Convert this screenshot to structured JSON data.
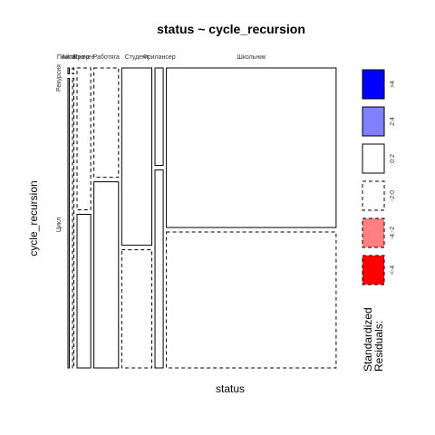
{
  "chart_data": {
    "type": "mosaic",
    "title": "status ~ cycle_recursion",
    "xlabel": "status",
    "ylabel": "cycle_recursion",
    "x_categories": [
      "Айти",
      "Пенсионер",
      "Прочее",
      "Работяга",
      "Студент",
      "Фрилансер",
      "Школьник"
    ],
    "y_categories": [
      "Рекурсия",
      "Цикл"
    ],
    "cells": [
      {
        "status": "Айти",
        "cycle_recursion": "Рекурсия",
        "proportion_x": 0.005,
        "proportion_y": 0.02,
        "residual_class": "0:2"
      },
      {
        "status": "Айти",
        "cycle_recursion": "Цикл",
        "proportion_x": 0.005,
        "proportion_y": 0.98,
        "residual_class": "0:2"
      },
      {
        "status": "Пенсионер",
        "cycle_recursion": "Рекурсия",
        "proportion_x": 0.002,
        "proportion_y": 0.02,
        "residual_class": "-2:0"
      },
      {
        "status": "Пенсионер",
        "cycle_recursion": "Цикл",
        "proportion_x": 0.002,
        "proportion_y": 0.98,
        "residual_class": "-2:0"
      },
      {
        "status": "Прочее",
        "cycle_recursion": "Рекурсия",
        "proportion_x": 0.05,
        "proportion_y": 0.48,
        "residual_class": "-2:0"
      },
      {
        "status": "Прочее",
        "cycle_recursion": "Цикл",
        "proportion_x": 0.05,
        "proportion_y": 0.52,
        "residual_class": "0:2"
      },
      {
        "status": "Работяга",
        "cycle_recursion": "Рекурсия",
        "proportion_x": 0.09,
        "proportion_y": 0.37,
        "residual_class": "-2:0"
      },
      {
        "status": "Работяга",
        "cycle_recursion": "Цикл",
        "proportion_x": 0.09,
        "proportion_y": 0.63,
        "residual_class": "0:2"
      },
      {
        "status": "Студент",
        "cycle_recursion": "Рекурсия",
        "proportion_x": 0.11,
        "proportion_y": 0.6,
        "residual_class": "0:2"
      },
      {
        "status": "Студент",
        "cycle_recursion": "Цикл",
        "proportion_x": 0.11,
        "proportion_y": 0.4,
        "residual_class": "-2:0"
      },
      {
        "status": "Фрилансер",
        "cycle_recursion": "Рекурсия",
        "proportion_x": 0.03,
        "proportion_y": 0.33,
        "residual_class": "0:2"
      },
      {
        "status": "Фрилансер",
        "cycle_recursion": "Цикл",
        "proportion_x": 0.03,
        "proportion_y": 0.67,
        "residual_class": "0:2"
      },
      {
        "status": "Школьник",
        "cycle_recursion": "Рекурсия",
        "proportion_x": 0.62,
        "proportion_y": 0.54,
        "residual_class": "0:2"
      },
      {
        "status": "Школьник",
        "cycle_recursion": "Цикл",
        "proportion_x": 0.62,
        "proportion_y": 0.46,
        "residual_class": "-2:0"
      }
    ],
    "legend": {
      "title": "Standardized Residuals:",
      "placement": "right",
      "entries": [
        {
          "label": ">4",
          "color": "#0000ff",
          "border": "solid"
        },
        {
          "label": "2:4",
          "color": "#8080ff",
          "border": "solid"
        },
        {
          "label": "0:2",
          "color": "#ffffff",
          "border": "solid"
        },
        {
          "label": "-2:0",
          "color": "#ffffff",
          "border": "dashed"
        },
        {
          "label": "-4:-2",
          "color": "#ff8080",
          "border": "dashed"
        },
        {
          "label": "<-4",
          "color": "#ff0000",
          "border": "dashed"
        }
      ]
    }
  }
}
